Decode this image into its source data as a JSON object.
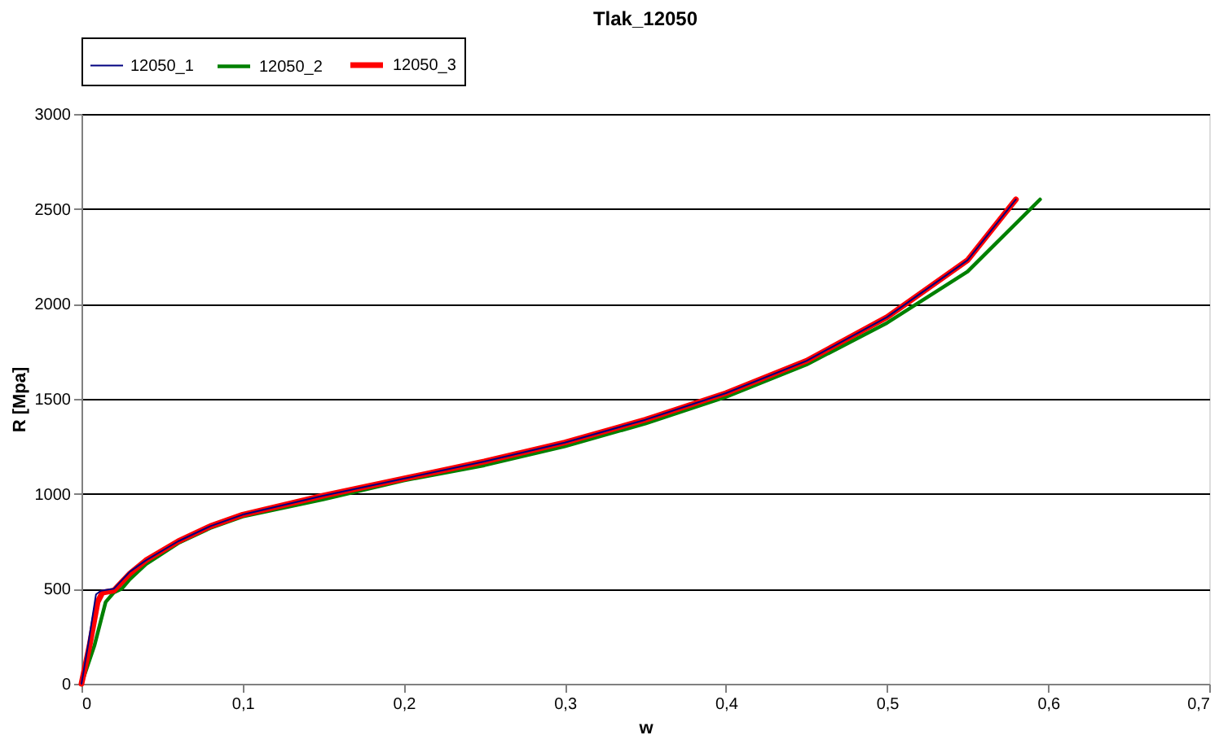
{
  "chart_data": {
    "type": "line",
    "title": "Tlak_12050",
    "xlabel": "w",
    "ylabel": "R [Mpa]",
    "series": [
      {
        "name": "12050_1",
        "color": "#000080",
        "x": [
          0,
          0.004,
          0.009,
          0.012,
          0.02,
          0.03,
          0.04,
          0.06,
          0.08,
          0.1,
          0.15,
          0.2,
          0.25,
          0.3,
          0.35,
          0.4,
          0.45,
          0.5,
          0.55,
          0.58
        ],
        "values": [
          0,
          200,
          470,
          490,
          500,
          590,
          650,
          750,
          830,
          890,
          990,
          1080,
          1170,
          1270,
          1390,
          1530,
          1700,
          1930,
          2230,
          2550
        ]
      },
      {
        "name": "12050_2",
        "color": "#008000",
        "x": [
          0,
          0.008,
          0.015,
          0.02,
          0.025,
          0.03,
          0.04,
          0.06,
          0.08,
          0.1,
          0.15,
          0.2,
          0.25,
          0.3,
          0.35,
          0.4,
          0.45,
          0.5,
          0.55,
          0.595
        ],
        "values": [
          0,
          200,
          430,
          480,
          500,
          550,
          630,
          740,
          820,
          880,
          970,
          1070,
          1150,
          1250,
          1370,
          1510,
          1680,
          1900,
          2170,
          2550
        ]
      },
      {
        "name": "12050_3",
        "color": "#ff0000",
        "x": [
          0,
          0.005,
          0.01,
          0.013,
          0.02,
          0.03,
          0.04,
          0.06,
          0.08,
          0.1,
          0.15,
          0.2,
          0.25,
          0.3,
          0.35,
          0.4,
          0.45,
          0.5,
          0.55,
          0.58
        ],
        "values": [
          0,
          200,
          430,
          480,
          490,
          580,
          650,
          750,
          830,
          890,
          990,
          1080,
          1170,
          1270,
          1390,
          1530,
          1700,
          1930,
          2230,
          2550
        ]
      }
    ],
    "xlim": [
      0,
      0.7
    ],
    "xticks": [
      0,
      {
        "value": 0.1,
        "label": "0,1"
      },
      {
        "value": 0.2,
        "label": "0,2"
      },
      {
        "value": 0.3,
        "label": "0,3"
      },
      {
        "value": 0.4,
        "label": "0,4"
      },
      {
        "value": 0.5,
        "label": "0,5"
      },
      {
        "value": 0.6,
        "label": "0,6"
      },
      {
        "value": 0.7,
        "label": "0,7"
      }
    ],
    "ylim": [
      0,
      3000
    ],
    "yticks": [
      0,
      500,
      1000,
      1500,
      2000,
      2500,
      3000
    ],
    "grid": "y",
    "legend": "top",
    "marker": "none",
    "line_style": "solid"
  }
}
